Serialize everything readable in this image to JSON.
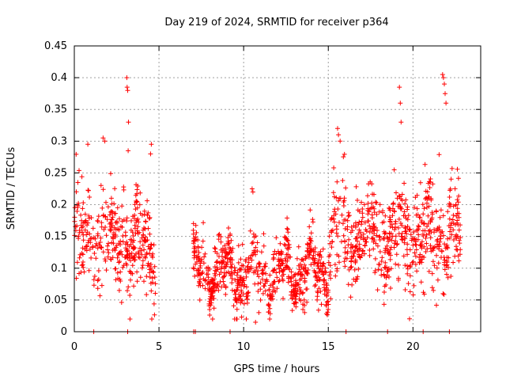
{
  "chart_data": {
    "type": "scatter",
    "title": "Day 219 of 2024, SRMTID for receiver p364",
    "xlabel": "GPS time / hours",
    "ylabel": "SRMTID / TECUs",
    "xlim": [
      0,
      24
    ],
    "ylim": [
      0,
      0.45
    ],
    "x_ticks": [
      0,
      5,
      10,
      15,
      20
    ],
    "y_ticks": [
      0,
      0.05,
      0.1,
      0.15,
      0.2,
      0.25,
      0.3,
      0.35,
      0.4,
      0.45
    ],
    "x_tick_labels": [
      "0",
      "5",
      "10",
      "15",
      "20"
    ],
    "y_tick_labels": [
      "0",
      "0.05",
      "0.1",
      "0.15",
      "0.2",
      "0.25",
      "0.3",
      "0.35",
      "0.4",
      "0.45"
    ],
    "grid": true,
    "marker": "+",
    "color": "#ff0000",
    "series": [
      {
        "name": "SRMTID",
        "segments": [
          {
            "x_start": 0.0,
            "x_end": 4.8,
            "mean": 0.14,
            "spread": 0.06,
            "count": 380
          },
          {
            "x_start": 7.0,
            "x_end": 15.0,
            "mean": 0.095,
            "spread": 0.035,
            "count": 700
          },
          {
            "x_start": 15.0,
            "x_end": 22.8,
            "mean": 0.15,
            "spread": 0.06,
            "count": 620
          }
        ],
        "notable_points": [
          {
            "x": 3.1,
            "y": 0.4
          },
          {
            "x": 3.12,
            "y": 0.385
          },
          {
            "x": 3.15,
            "y": 0.38
          },
          {
            "x": 3.2,
            "y": 0.33
          },
          {
            "x": 3.18,
            "y": 0.285
          },
          {
            "x": 1.7,
            "y": 0.305
          },
          {
            "x": 1.8,
            "y": 0.3
          },
          {
            "x": 0.8,
            "y": 0.295
          },
          {
            "x": 4.55,
            "y": 0.295
          },
          {
            "x": 4.5,
            "y": 0.28
          },
          {
            "x": 19.2,
            "y": 0.385
          },
          {
            "x": 19.25,
            "y": 0.36
          },
          {
            "x": 19.3,
            "y": 0.33
          },
          {
            "x": 21.75,
            "y": 0.405
          },
          {
            "x": 21.8,
            "y": 0.4
          },
          {
            "x": 21.85,
            "y": 0.39
          },
          {
            "x": 21.9,
            "y": 0.375
          },
          {
            "x": 21.95,
            "y": 0.36
          },
          {
            "x": 15.55,
            "y": 0.32
          },
          {
            "x": 15.6,
            "y": 0.31
          },
          {
            "x": 15.7,
            "y": 0.3
          },
          {
            "x": 10.5,
            "y": 0.225
          },
          {
            "x": 10.55,
            "y": 0.22
          },
          {
            "x": 10.7,
            "y": 0.015
          },
          {
            "x": 10.9,
            "y": 0.03
          },
          {
            "x": 13.6,
            "y": 0.03
          },
          {
            "x": 13.5,
            "y": 0.035
          }
        ],
        "zero_points": [
          1.15,
          3.15,
          7.05,
          7.15,
          9.2,
          16.05,
          18.5,
          20.6,
          22.15
        ]
      }
    ]
  }
}
